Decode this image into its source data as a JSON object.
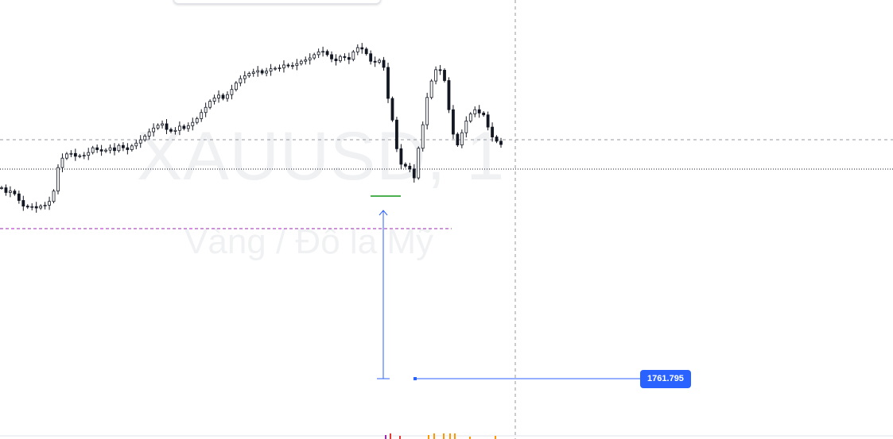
{
  "watermark": {
    "symbol": "XAUUSD, 1",
    "description": "Vàng / Đô la Mỹ"
  },
  "price_label": "1761.795",
  "colors": {
    "candle": "#131722",
    "crosshair": "#9598a1",
    "drawing_line": "#2962ff",
    "measure_bar": "#4caf50",
    "level_line": "#9c27b0",
    "label_bg": "#2962ff"
  },
  "chart_data": {
    "type": "line",
    "title": "",
    "xlabel": "",
    "ylabel": "",
    "grid": false,
    "series": [
      {
        "values": [
          3.5,
          2.5,
          2.8,
          2.2,
          0.8,
          -0.4,
          -0.6,
          -0.5,
          -0.8,
          -0.4,
          -0.2,
          0.6,
          2.8,
          7.8,
          9.8,
          10.7,
          10.8,
          10.2,
          10.3,
          10.4,
          11.0,
          12.0,
          11.6,
          11.3,
          11.5,
          12.0,
          11.4,
          12.5,
          12.0,
          11.6,
          12.4,
          13.0,
          13.7,
          14.5,
          15.4,
          16.2,
          16.8,
          17.1,
          15.9,
          15.5,
          15.7,
          16.6,
          16.1,
          16.7,
          17.4,
          18.2,
          19.5,
          20.6,
          21.9,
          22.6,
          23.2,
          22.5,
          23.3,
          24.4,
          25.8,
          26.7,
          27.3,
          27.8,
          28.1,
          28.4,
          27.9,
          28.3,
          28.8,
          28.9,
          29.0,
          29.6,
          29.4,
          29.5,
          29.9,
          30.4,
          30.7,
          31.1,
          31.8,
          32.4,
          32.5,
          31.8,
          30.9,
          30.5,
          31.4,
          31.2,
          30.8,
          32.4,
          33.3,
          33.0,
          32.0,
          30.4,
          30.2,
          30.6,
          29.1,
          22.5,
          17.9,
          11.8,
          8.5,
          8.1,
          7.5,
          5.6,
          11.9,
          16.9,
          22.7,
          26.2,
          28.6,
          28.5,
          26.3,
          20.1,
          14.9,
          12.6,
          15.2,
          17.7,
          19.2,
          20.1,
          19.4,
          19.0,
          16.4,
          14.3,
          13.4,
          12.7
        ]
      }
    ]
  }
}
